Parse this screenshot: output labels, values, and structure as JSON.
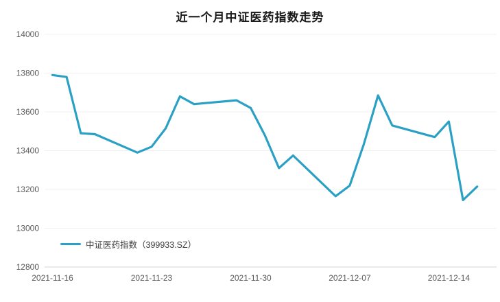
{
  "page": {
    "title": "近一个月中证医药指数走势"
  },
  "colors": {
    "background": "#ffffff",
    "series_line": "#2aa0c4",
    "grid_line": "#f0f0f0",
    "axis_line": "#d6d6d6",
    "tick_label": "#595959",
    "title_text": "#1a1a1a"
  },
  "chart_data": {
    "type": "line",
    "title": "近一个月中证医药指数走势",
    "xlabel": "",
    "ylabel": "",
    "ylim": [
      12800,
      14000
    ],
    "y_ticks": [
      12800,
      13000,
      13200,
      13400,
      13600,
      13800,
      14000
    ],
    "x_tick_labels": [
      "2021-11-16",
      "2021-11-23",
      "2021-11-30",
      "2021-12-07",
      "2021-12-14"
    ],
    "grid": "horizontal gridlines, very light; bottom axis line only",
    "legend_position": "bottom-left inside plot",
    "legend": [
      {
        "label": "中证医药指数（399933.SZ）",
        "color": "#2aa0c4"
      }
    ],
    "series": [
      {
        "name": "中证医药指数（399933.SZ）",
        "color": "#2aa0c4",
        "points": [
          {
            "date": "2021-11-16",
            "value": 13790
          },
          {
            "date": "2021-11-17",
            "value": 13780
          },
          {
            "date": "2021-11-18",
            "value": 13490
          },
          {
            "date": "2021-11-19",
            "value": 13485
          },
          {
            "date": "2021-11-22",
            "value": 13390
          },
          {
            "date": "2021-11-23",
            "value": 13420
          },
          {
            "date": "2021-11-24",
            "value": 13515
          },
          {
            "date": "2021-11-25",
            "value": 13680
          },
          {
            "date": "2021-11-26",
            "value": 13640
          },
          {
            "date": "2021-11-29",
            "value": 13660
          },
          {
            "date": "2021-11-30",
            "value": 13620
          },
          {
            "date": "2021-12-01",
            "value": 13480
          },
          {
            "date": "2021-12-02",
            "value": 13310
          },
          {
            "date": "2021-12-03",
            "value": 13375
          },
          {
            "date": "2021-12-06",
            "value": 13165
          },
          {
            "date": "2021-12-07",
            "value": 13220
          },
          {
            "date": "2021-12-08",
            "value": 13435
          },
          {
            "date": "2021-12-09",
            "value": 13685
          },
          {
            "date": "2021-12-10",
            "value": 13530
          },
          {
            "date": "2021-12-13",
            "value": 13470
          },
          {
            "date": "2021-12-14",
            "value": 13550
          },
          {
            "date": "2021-12-15",
            "value": 13145
          },
          {
            "date": "2021-12-16",
            "value": 13215
          }
        ]
      }
    ]
  }
}
